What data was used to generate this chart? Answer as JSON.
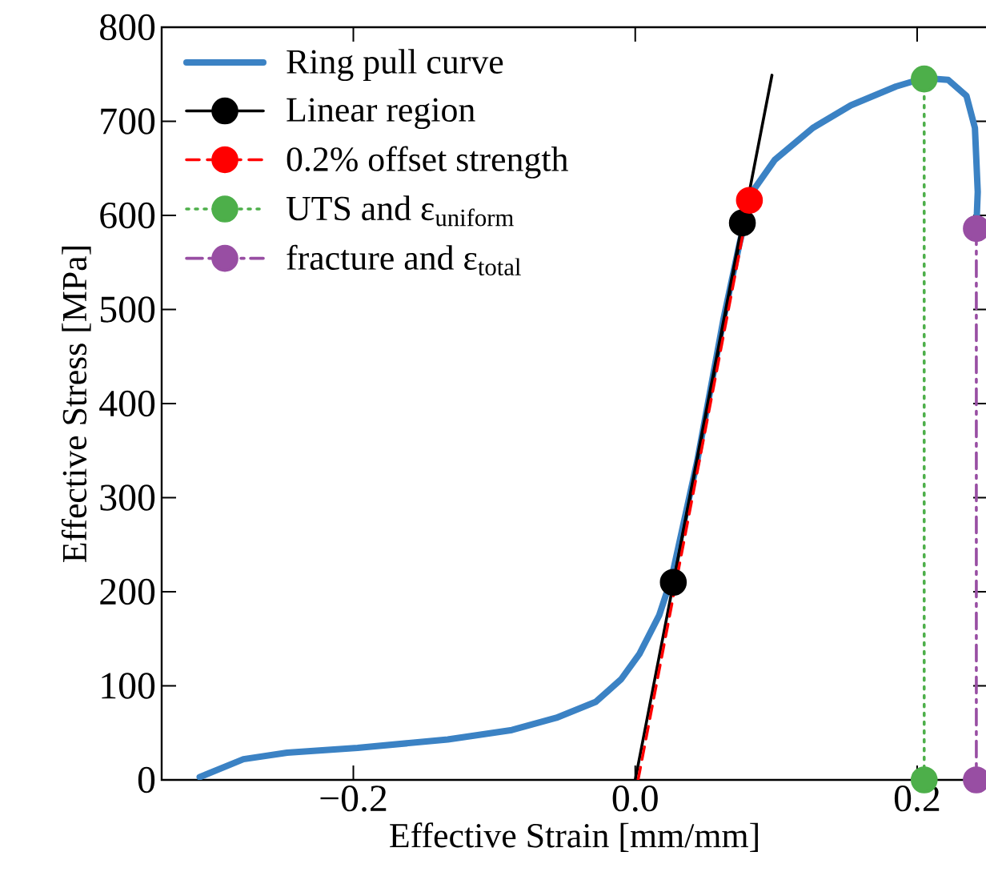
{
  "chart_data": {
    "type": "line",
    "xlabel": "Effective Strain [mm/mm]",
    "ylabel": "Effective Stress [MPa]",
    "xlim": [
      -0.336,
      0.25
    ],
    "ylim": [
      0,
      800
    ],
    "xticks": [
      {
        "value": -0.2,
        "label": "−0.2"
      },
      {
        "value": 0.0,
        "label": "0.0"
      },
      {
        "value": 0.2,
        "label": "0.2"
      }
    ],
    "yticks": [
      0,
      100,
      200,
      300,
      400,
      500,
      600,
      700,
      800
    ],
    "legend": "top left",
    "grid": false,
    "series": [
      {
        "name": "Ring pull curve",
        "color": "#3b82c4",
        "marker": "none",
        "line_style": "solid",
        "x": [
          -0.309,
          -0.278,
          -0.247,
          -0.197,
          -0.133,
          -0.0875,
          -0.056,
          -0.028,
          -0.01,
          0.003,
          0.017,
          0.026,
          0.044,
          0.0625,
          0.074,
          0.083,
          0.099,
          0.126,
          0.153,
          0.185,
          0.205,
          0.222,
          0.235,
          0.241,
          0.243,
          0.242
        ],
        "values": [
          3,
          22,
          29,
          34,
          43,
          53,
          66,
          83,
          107,
          134,
          175,
          216,
          339,
          489,
          570,
          625,
          659,
          693,
          717,
          737,
          746,
          744,
          727,
          693,
          625,
          587
        ]
      },
      {
        "name": "Linear region",
        "color": "#000000",
        "marker": "circle",
        "line_style": "solid",
        "x": [
          0.027,
          0.076
        ],
        "values": [
          210,
          592
        ]
      },
      {
        "color": "#000000",
        "marker": "none",
        "line_style": "solid",
        "x": [
          0.0,
          0.097
        ],
        "values": [
          0,
          749
        ]
      },
      {
        "name": "0.2% offset strength",
        "color": "#ff0000",
        "marker": "circle",
        "line_style": "dashed",
        "x": [
          0.081
        ],
        "values": [
          616
        ]
      },
      {
        "color": "#ff0000",
        "marker": "none",
        "line_style": "dashed",
        "x": [
          0.002,
          0.081
        ],
        "values": [
          0,
          616
        ]
      },
      {
        "name": "UTS and ε$_{uniform}$",
        "color": "#4daf4a",
        "marker": "circle",
        "line_style": "dotted",
        "x": [
          0.205,
          0.205
        ],
        "values": [
          745,
          0
        ]
      },
      {
        "name": "fracture and ε$_{total}$",
        "color": "#984ea3",
        "marker": "circle",
        "line_style": "dashdot",
        "x": [
          0.242,
          0.242
        ],
        "values": [
          586,
          0
        ]
      }
    ]
  }
}
